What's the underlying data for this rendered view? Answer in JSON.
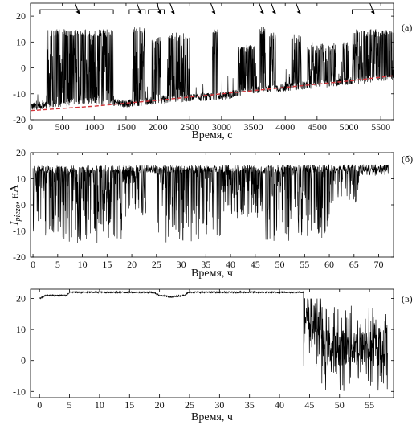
{
  "figure": {
    "ylabel_main": "I",
    "ylabel_sub": "piezo",
    "ylabel_unit": ", нА"
  },
  "chart_data": [
    {
      "id": "a",
      "type": "line",
      "panel_label": "(а)",
      "xlabel": "Время, с",
      "xlim": [
        0,
        5700
      ],
      "ylim": [
        -20,
        25
      ],
      "xticks": [
        0,
        500,
        1000,
        1500,
        2000,
        2500,
        3000,
        3500,
        4000,
        4500,
        5000,
        5500
      ],
      "yticks": [
        -20,
        -10,
        0,
        10,
        20
      ],
      "baseline_series": {
        "name": "",
        "color": "#d4343a",
        "style": "dashed",
        "x": [
          0,
          1000,
          2000,
          3000,
          4000,
          5000,
          5700
        ],
        "y": [
          -16.5,
          -14.8,
          -12.5,
          -10.0,
          -7.5,
          -5.0,
          -3.0
        ]
      },
      "signal_series": {
        "color": "#000000",
        "baseline_x": [
          0,
          500,
          1000,
          1500,
          2000,
          2500,
          3000,
          3500,
          4000,
          4500,
          5000,
          5500,
          5700
        ],
        "baseline_y": [
          -15,
          -13.5,
          -12.8,
          -13.8,
          -12.5,
          -11.5,
          -11.0,
          -8.5,
          -7.5,
          -6.5,
          -5.0,
          -4.0,
          -3.5
        ],
        "burst_regions": [
          {
            "x0": 250,
            "x1": 1300,
            "y_high": 15
          },
          {
            "x0": 1600,
            "x1": 1800,
            "y_high": 16
          },
          {
            "x0": 1900,
            "x1": 2050,
            "y_high": 12
          },
          {
            "x0": 2150,
            "x1": 2500,
            "y_high": 14
          },
          {
            "x0": 2850,
            "x1": 2950,
            "y_high": 15
          },
          {
            "x0": 3250,
            "x1": 3550,
            "y_high": 9
          },
          {
            "x0": 3600,
            "x1": 3700,
            "y_high": 16
          },
          {
            "x0": 3750,
            "x1": 3850,
            "y_high": 14
          },
          {
            "x0": 4100,
            "x1": 4250,
            "y_high": 13
          },
          {
            "x0": 4350,
            "x1": 4800,
            "y_high": 10
          },
          {
            "x0": 4900,
            "x1": 5000,
            "y_high": 10
          },
          {
            "x0": 5050,
            "x1": 5700,
            "y_high": 15
          }
        ]
      },
      "annotations": {
        "brackets_x": [
          [
            150,
            1300
          ],
          [
            1550,
            1800
          ],
          [
            1850,
            2100
          ],
          [
            5050,
            5700
          ]
        ],
        "arrows_x": [
          750,
          1720,
          2030,
          2240,
          2880,
          3640,
          3830,
          4220,
          5380
        ]
      }
    },
    {
      "id": "b",
      "type": "line",
      "panel_label": "(б)",
      "xlabel": "",
      "xlim": [
        -0.5,
        73
      ],
      "ylim": [
        -20,
        20
      ],
      "xticks": [
        0,
        5,
        10,
        15,
        20,
        25,
        30,
        35,
        40,
        45,
        50,
        55,
        60,
        65,
        70
      ],
      "yticks": [
        -20,
        -10,
        0,
        10,
        20
      ],
      "signal_series": {
        "color": "#000000",
        "upper_x": [
          0,
          72
        ],
        "upper_y": [
          15,
          15.5
        ],
        "dip_regions": [
          {
            "x0": 0,
            "x1": 6,
            "y_low": -12
          },
          {
            "x0": 6,
            "x1": 18,
            "y_low": -15
          },
          {
            "x0": 18,
            "x1": 23,
            "y_low": -5
          },
          {
            "x0": 25,
            "x1": 38,
            "y_low": -15
          },
          {
            "x0": 38,
            "x1": 47,
            "y_low": -5
          },
          {
            "x0": 47,
            "x1": 60,
            "y_low": -14
          },
          {
            "x0": 60,
            "x1": 66,
            "y_low": 0
          },
          {
            "x0": 66,
            "x1": 72,
            "y_low": 11
          }
        ]
      }
    },
    {
      "id": "c",
      "type": "line",
      "panel_label": "(в)",
      "xlabel": "Время, ч",
      "xlim": [
        -1.5,
        59
      ],
      "ylim": [
        -12,
        23
      ],
      "xticks": [
        0,
        5,
        10,
        15,
        20,
        25,
        30,
        35,
        40,
        45,
        50,
        55
      ],
      "yticks": [
        -10,
        0,
        10,
        20
      ],
      "signal_series": {
        "color": "#000000",
        "flat_x": [
          0,
          1,
          4.5,
          5,
          18,
          19,
          20,
          22,
          24,
          25,
          44
        ],
        "flat_y": [
          20,
          21,
          21,
          22,
          22,
          22,
          21,
          20.5,
          21,
          22,
          22
        ],
        "noisy_region": {
          "x0": 44,
          "x1": 58,
          "y_low": -10,
          "y_high": 20
        }
      }
    }
  ]
}
